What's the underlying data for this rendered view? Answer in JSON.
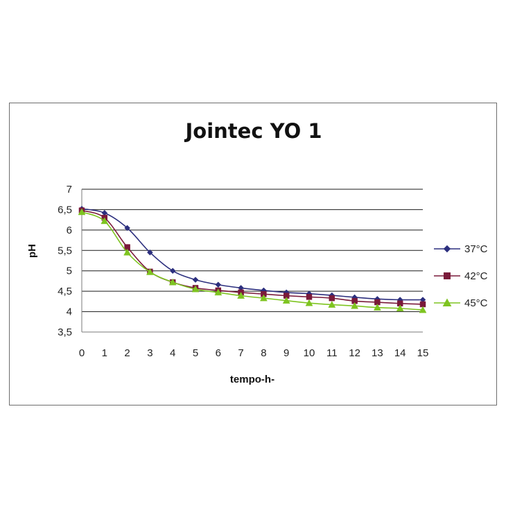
{
  "chart_data": {
    "type": "line",
    "title": "Jointec YO 1",
    "xlabel": "tempo-h-",
    "ylabel": "pH",
    "x": [
      0,
      1,
      2,
      3,
      4,
      5,
      6,
      7,
      8,
      9,
      10,
      11,
      12,
      13,
      14,
      15
    ],
    "xlim": [
      0,
      15
    ],
    "ylim": [
      3.5,
      7
    ],
    "y_ticks": [
      "3,5",
      "4",
      "4,5",
      "5",
      "5,5",
      "6",
      "6,5",
      "7"
    ],
    "x_ticks": [
      "0",
      "1",
      "2",
      "3",
      "4",
      "5",
      "6",
      "7",
      "8",
      "9",
      "10",
      "11",
      "12",
      "13",
      "14",
      "15"
    ],
    "grid": "horizontal",
    "legend_position": "right",
    "series": [
      {
        "name": "37°C",
        "color": "#2c2f7e",
        "marker": "diamond",
        "values": [
          6.52,
          6.42,
          6.05,
          5.45,
          5.0,
          4.78,
          4.66,
          4.58,
          4.52,
          4.47,
          4.44,
          4.4,
          4.35,
          4.31,
          4.29,
          4.29
        ]
      },
      {
        "name": "42°C",
        "color": "#7a1a3a",
        "marker": "square",
        "values": [
          6.48,
          6.3,
          5.58,
          4.98,
          4.72,
          4.58,
          4.52,
          4.47,
          4.43,
          4.39,
          4.36,
          4.33,
          4.26,
          4.23,
          4.2,
          4.18
        ]
      },
      {
        "name": "45°C",
        "color": "#7ec420",
        "marker": "triangle",
        "values": [
          6.44,
          6.22,
          5.45,
          4.97,
          4.72,
          4.55,
          4.47,
          4.39,
          4.33,
          4.27,
          4.21,
          4.17,
          4.14,
          4.1,
          4.08,
          4.04
        ]
      }
    ]
  }
}
